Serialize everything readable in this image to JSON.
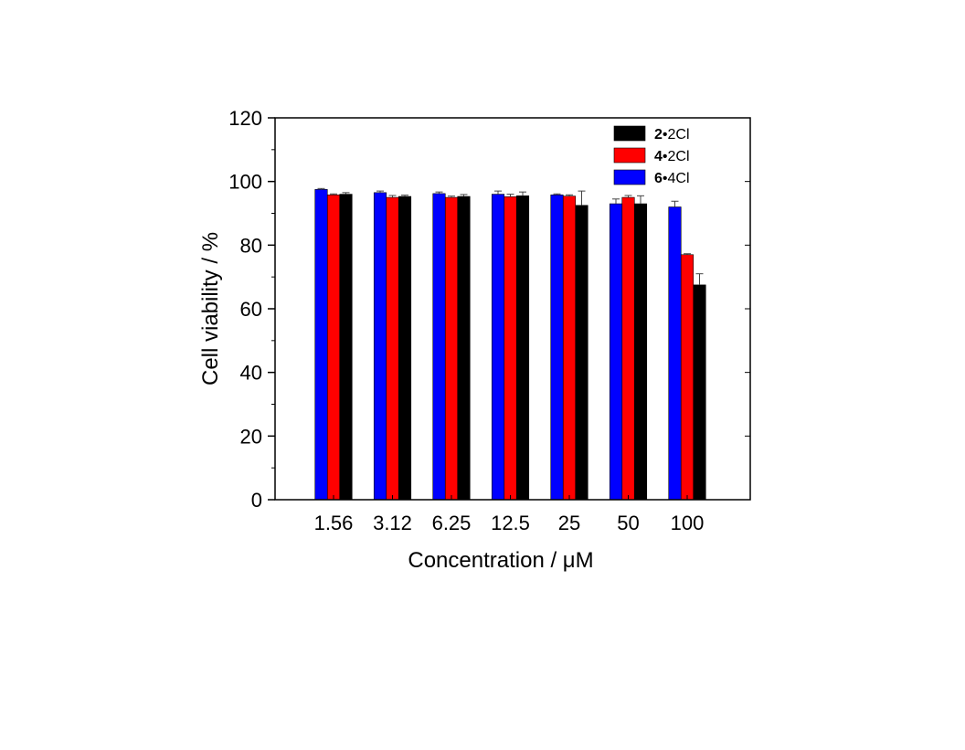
{
  "chart_data": {
    "type": "bar",
    "title": "",
    "xlabel": "Concentration / μM",
    "ylabel": "Cell viability / %",
    "categories": [
      "1.56",
      "3.12",
      "6.25",
      "12.5",
      "25",
      "50",
      "100"
    ],
    "ylim": [
      0,
      120
    ],
    "yticks": [
      0,
      20,
      40,
      60,
      80,
      100,
      120
    ],
    "grid": false,
    "legend_position": "top-right",
    "series": [
      {
        "name_bold": "6",
        "name_rest": "•4Cl",
        "name": "6•4Cl",
        "color": "#0000ff",
        "values": [
          97.5,
          96.5,
          96.2,
          96.0,
          95.8,
          93.0,
          92.0
        ],
        "errors": [
          0.3,
          0.5,
          0.5,
          1.0,
          0.3,
          1.5,
          1.8
        ]
      },
      {
        "name_bold": "4",
        "name_rest": "•2Cl",
        "name": "4•2Cl",
        "color": "#ff0000",
        "values": [
          95.8,
          95.0,
          95.0,
          95.2,
          95.4,
          95.0,
          77.0
        ],
        "errors": [
          0.3,
          0.6,
          0.4,
          0.8,
          0.4,
          0.6,
          0.3
        ]
      },
      {
        "name_bold": "2",
        "name_rest": "•2Cl",
        "name": "2•2Cl",
        "color": "#000000",
        "values": [
          96.0,
          95.3,
          95.3,
          95.5,
          92.5,
          93.0,
          67.5
        ],
        "errors": [
          0.5,
          0.4,
          0.6,
          1.2,
          4.5,
          2.5,
          3.5
        ]
      }
    ],
    "legend_order": [
      2,
      1,
      0
    ]
  }
}
